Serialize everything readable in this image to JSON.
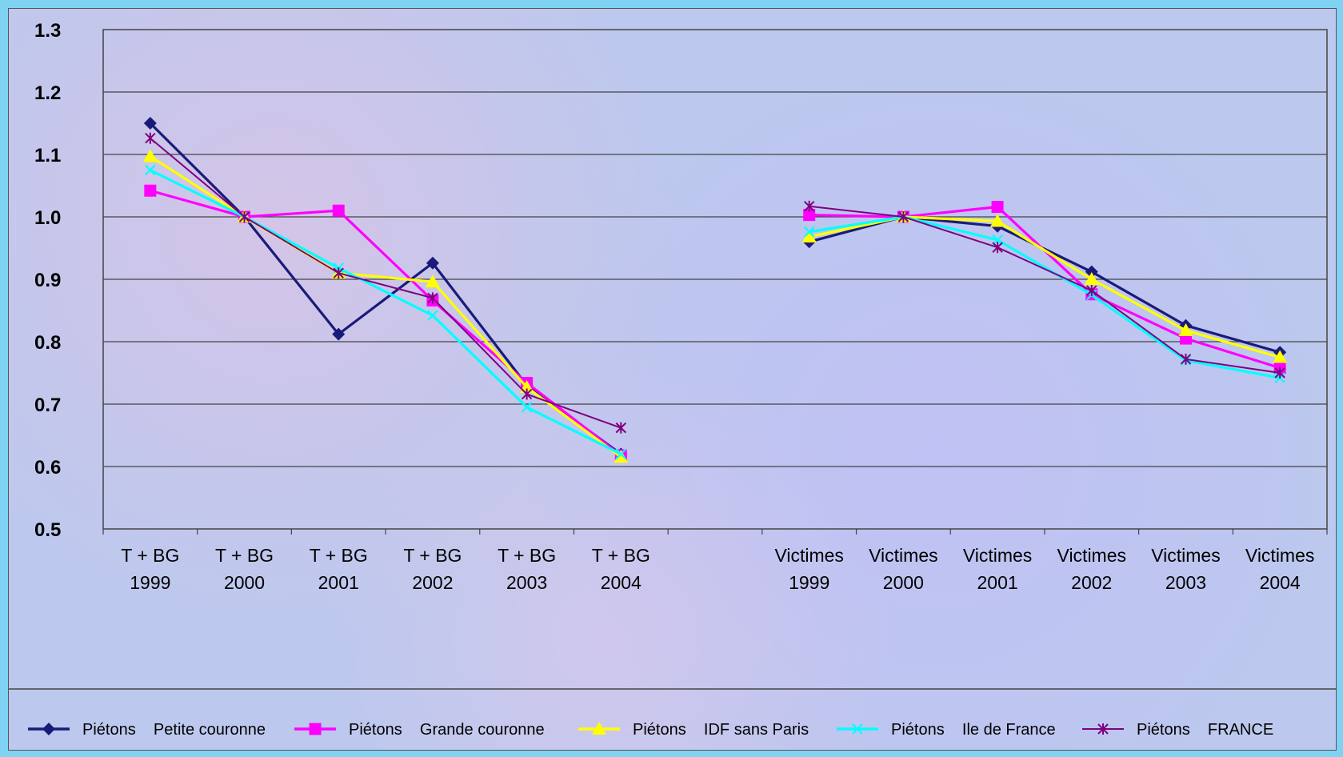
{
  "chart_data": {
    "type": "line",
    "categories": [
      [
        "T + BG",
        "1999"
      ],
      [
        "T + BG",
        "2000"
      ],
      [
        "T + BG",
        "2001"
      ],
      [
        "T + BG",
        "2002"
      ],
      [
        "T + BG",
        "2003"
      ],
      [
        "T + BG",
        "2004"
      ],
      [
        "",
        ""
      ],
      [
        "Victimes",
        "1999"
      ],
      [
        "Victimes",
        "2000"
      ],
      [
        "Victimes",
        "2001"
      ],
      [
        "Victimes",
        "2002"
      ],
      [
        "Victimes",
        "2003"
      ],
      [
        "Victimes",
        "2004"
      ]
    ],
    "ylim": [
      0.5,
      1.3
    ],
    "yticks": [
      "0.5",
      "0.6",
      "0.7",
      "0.8",
      "0.9",
      "1.0",
      "1.1",
      "1.2",
      "1.3"
    ],
    "grid": true,
    "legend_position": "bottom",
    "series": [
      {
        "name": "Piétons    Petite couronne",
        "color": "#1a1a7a",
        "marker": "diamond",
        "values": [
          1.15,
          1.0,
          0.812,
          0.926,
          0.73,
          0.62,
          null,
          0.96,
          1.0,
          0.985,
          0.912,
          0.826,
          0.783
        ]
      },
      {
        "name": "Piétons    Grande couronne",
        "color": "#ff00ff",
        "marker": "square",
        "values": [
          1.042,
          1.0,
          1.01,
          0.866,
          0.734,
          0.618,
          null,
          1.003,
          1.0,
          1.016,
          0.876,
          0.805,
          0.758
        ]
      },
      {
        "name": "Piétons    IDF sans Paris",
        "color": "#ffff00",
        "marker": "triangle",
        "values": [
          1.097,
          1.0,
          0.91,
          0.896,
          0.727,
          0.615,
          null,
          0.968,
          1.0,
          0.993,
          0.9,
          0.818,
          0.775
        ]
      },
      {
        "name": "Piétons    Ile de France",
        "color": "#00ffff",
        "marker": "x",
        "values": [
          1.075,
          1.0,
          0.918,
          0.842,
          0.695,
          0.62,
          null,
          0.976,
          1.0,
          0.963,
          0.875,
          0.77,
          0.742
        ]
      },
      {
        "name": "Piétons    FRANCE",
        "color": "#800080",
        "marker": "star",
        "values": [
          1.126,
          1.0,
          0.91,
          0.87,
          0.716,
          0.662,
          null,
          1.017,
          1.0,
          0.951,
          0.882,
          0.772,
          0.75
        ]
      }
    ]
  }
}
